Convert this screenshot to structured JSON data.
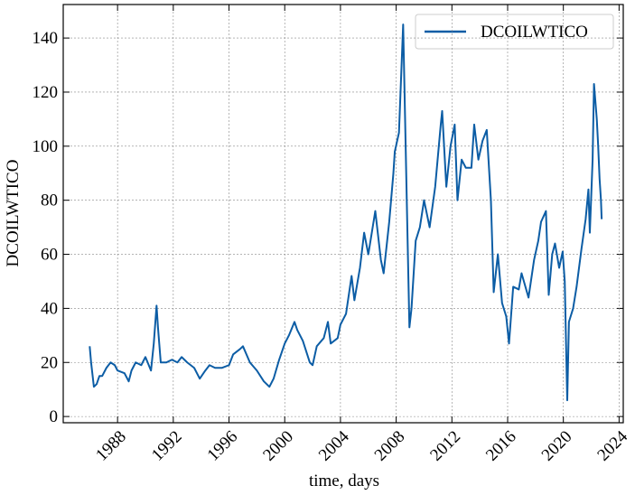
{
  "chart_data": {
    "type": "line",
    "x_label": "time, days",
    "y_label": "DCOILWTICO",
    "x": [
      1986.0,
      1986.1,
      1986.3,
      1986.5,
      1986.7,
      1986.9,
      1987.2,
      1987.5,
      1987.8,
      1988.0,
      1988.5,
      1988.8,
      1989.0,
      1989.3,
      1989.7,
      1990.0,
      1990.4,
      1990.6,
      1990.8,
      1990.9,
      1991.1,
      1991.5,
      1991.9,
      1992.3,
      1992.6,
      1993.0,
      1993.5,
      1993.9,
      1994.3,
      1994.6,
      1995.0,
      1995.5,
      1996.0,
      1996.3,
      1996.8,
      1997.0,
      1997.5,
      1998.0,
      1998.5,
      1998.9,
      1999.2,
      1999.6,
      2000.0,
      2000.3,
      2000.7,
      2000.9,
      2001.3,
      2001.8,
      2002.0,
      2002.3,
      2002.8,
      2003.1,
      2003.3,
      2003.8,
      2004.0,
      2004.4,
      2004.8,
      2005.0,
      2005.4,
      2005.7,
      2006.0,
      2006.5,
      2006.9,
      2007.1,
      2007.5,
      2007.8,
      2007.9,
      2008.2,
      2008.5,
      2008.6,
      2008.8,
      2008.95,
      2009.1,
      2009.4,
      2009.7,
      2010.0,
      2010.4,
      2010.8,
      2011.2,
      2011.3,
      2011.6,
      2011.9,
      2012.2,
      2012.4,
      2012.7,
      2013.0,
      2013.4,
      2013.6,
      2013.9,
      2014.2,
      2014.5,
      2014.8,
      2015.0,
      2015.3,
      2015.6,
      2015.9,
      2016.1,
      2016.4,
      2016.8,
      2017.0,
      2017.5,
      2017.9,
      2018.2,
      2018.4,
      2018.75,
      2018.95,
      2019.2,
      2019.4,
      2019.7,
      2019.95,
      2020.1,
      2020.28,
      2020.4,
      2020.7,
      2020.95,
      2021.3,
      2021.6,
      2021.8,
      2021.9,
      2022.1,
      2022.2,
      2022.4,
      2022.5,
      2022.6,
      2022.7,
      2022.75
    ],
    "series": [
      {
        "name": "DCOILWTICO",
        "color": "#0C5DA5",
        "values": [
          26,
          20,
          11,
          12,
          15,
          15,
          18,
          20,
          19,
          17,
          16,
          13,
          17,
          20,
          19,
          22,
          17,
          27,
          41,
          33,
          20,
          20,
          21,
          20,
          22,
          20,
          18,
          14,
          17,
          19,
          18,
          18,
          19,
          23,
          25,
          26,
          20,
          17,
          13,
          11,
          14,
          21,
          27,
          30,
          35,
          32,
          28,
          20,
          19,
          26,
          29,
          35,
          27,
          29,
          34,
          38,
          52,
          43,
          55,
          68,
          60,
          76,
          58,
          53,
          72,
          90,
          98,
          105,
          145,
          120,
          70,
          33,
          40,
          65,
          70,
          80,
          70,
          85,
          108,
          113,
          85,
          100,
          108,
          80,
          95,
          92,
          92,
          108,
          95,
          102,
          106,
          80,
          46,
          60,
          42,
          37,
          27,
          48,
          47,
          53,
          44,
          58,
          65,
          72,
          76,
          45,
          60,
          64,
          55,
          61,
          50,
          6,
          35,
          40,
          48,
          62,
          73,
          84,
          68,
          95,
          123,
          110,
          100,
          88,
          80,
          73
        ]
      }
    ],
    "xlim": [
      1984.1,
      2024.3
    ],
    "ylim": [
      -2.3,
      152.4
    ],
    "xticks": [
      1988,
      1992,
      1996,
      2000,
      2004,
      2008,
      2012,
      2016,
      2020,
      2024
    ],
    "yticks": [
      0,
      20,
      40,
      60,
      80,
      100,
      120,
      140
    ],
    "grid": true,
    "legend": "upper right"
  }
}
